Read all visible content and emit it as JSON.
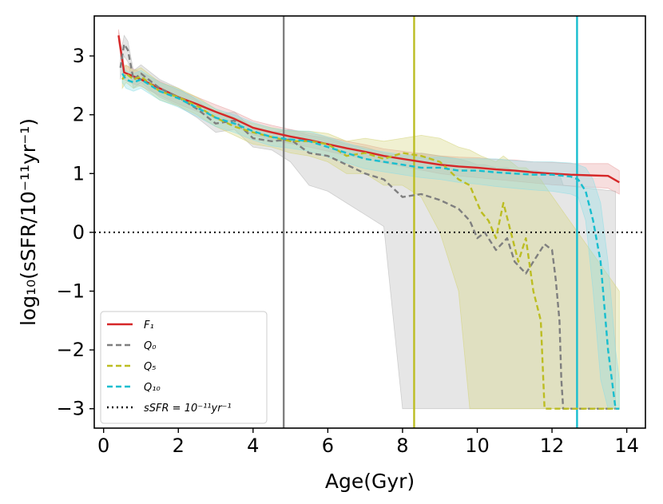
{
  "chart_data": {
    "type": "line",
    "xlabel": "Age(Gyr)",
    "ylabel": "log₁₀(sSFR/10⁻¹¹yr⁻¹)",
    "xlim": [
      -0.25,
      14.5
    ],
    "ylim": [
      -3.33,
      3.68
    ],
    "xticks": [
      0,
      2,
      4,
      6,
      8,
      10,
      12,
      14
    ],
    "yticks": [
      3,
      2,
      1,
      0,
      -1,
      -2,
      -3
    ],
    "grid": false,
    "legend_position": "lower-left",
    "reference_line": {
      "y": 0,
      "color": "#000000",
      "style": "dotted",
      "label": "sSFR = 10⁻¹¹yr⁻¹"
    },
    "vertical_lines": [
      {
        "x": 4.82,
        "color": "#808080"
      },
      {
        "x": 8.31,
        "color": "#bcbd22"
      },
      {
        "x": 12.67,
        "color": "#17becf"
      }
    ],
    "series": [
      {
        "name": "F₁",
        "color": "#d62728",
        "style": "solid",
        "band_color": "#e8a0a0",
        "x": [
          0.4,
          0.55,
          0.7,
          1,
          1.5,
          2,
          2.5,
          3,
          3.5,
          4,
          4.5,
          5,
          5.5,
          6,
          6.5,
          7,
          7.5,
          8,
          8.5,
          9,
          9.5,
          10,
          10.5,
          11,
          11.5,
          12,
          12.5,
          13,
          13.5,
          13.8
        ],
        "y": [
          3.35,
          2.72,
          2.68,
          2.6,
          2.45,
          2.3,
          2.18,
          2.05,
          1.93,
          1.78,
          1.7,
          1.63,
          1.57,
          1.5,
          1.43,
          1.37,
          1.3,
          1.25,
          1.2,
          1.15,
          1.12,
          1.1,
          1.07,
          1.05,
          1.02,
          1,
          0.98,
          0.97,
          0.96,
          0.85
        ],
        "lower": [
          3.25,
          2.6,
          2.55,
          2.48,
          2.33,
          2.18,
          2.06,
          1.93,
          1.81,
          1.66,
          1.58,
          1.51,
          1.45,
          1.38,
          1.31,
          1.25,
          1.18,
          1.12,
          1.06,
          1,
          0.96,
          0.93,
          0.9,
          0.87,
          0.84,
          0.81,
          0.79,
          0.77,
          0.75,
          0.65
        ],
        "upper": [
          3.45,
          2.84,
          2.81,
          2.72,
          2.57,
          2.42,
          2.3,
          2.17,
          2.05,
          1.9,
          1.82,
          1.75,
          1.69,
          1.62,
          1.55,
          1.49,
          1.42,
          1.38,
          1.34,
          1.3,
          1.28,
          1.27,
          1.24,
          1.23,
          1.2,
          1.19,
          1.17,
          1.17,
          1.17,
          1.05
        ]
      },
      {
        "name": "Q₀",
        "color": "#7f7f7f",
        "style": "dashed",
        "band_color": "#b8b8b8",
        "x": [
          0.45,
          0.55,
          0.65,
          0.8,
          1,
          1.5,
          2,
          2.5,
          3,
          3.5,
          4,
          4.5,
          5,
          5.5,
          6,
          6.5,
          7,
          7.5,
          8,
          8.5,
          9,
          9.5,
          9.8,
          10,
          10.2,
          10.5,
          10.8,
          11,
          11.3,
          11.6,
          11.8,
          12,
          12.1,
          12.2,
          12.25,
          12.3,
          13.7
        ],
        "y": [
          2.8,
          3.2,
          3.1,
          2.6,
          2.7,
          2.45,
          2.3,
          2.1,
          1.85,
          1.9,
          1.6,
          1.55,
          1.58,
          1.35,
          1.3,
          1.15,
          1,
          0.9,
          0.6,
          0.65,
          0.55,
          0.4,
          0.2,
          -0.1,
          0,
          -0.3,
          -0.1,
          -0.5,
          -0.7,
          -0.4,
          -0.2,
          -0.3,
          -0.8,
          -1.5,
          -2.5,
          -3,
          -3
        ],
        "lower": [
          2.6,
          3,
          2.9,
          2.45,
          2.55,
          2.3,
          2.15,
          1.95,
          1.7,
          1.75,
          1.45,
          1.4,
          1.2,
          0.8,
          0.7,
          0.5,
          0.3,
          0.1,
          -3,
          -3,
          -3,
          -3,
          -3,
          -3,
          -3,
          -3,
          -3,
          -3,
          -3,
          -3,
          -3,
          -3,
          -3,
          -3,
          -3,
          -3,
          -3
        ],
        "upper": [
          3,
          3.35,
          3.25,
          2.75,
          2.85,
          2.6,
          2.45,
          2.25,
          2,
          2.05,
          1.75,
          1.7,
          1.75,
          1.65,
          1.6,
          1.5,
          1.45,
          1.35,
          1.3,
          1.35,
          1.3,
          1.25,
          1.2,
          1.15,
          1.15,
          1.1,
          1.1,
          1.05,
          1.05,
          1.05,
          1,
          1,
          1,
          1,
          0.9,
          0.8,
          0.7
        ]
      },
      {
        "name": "Q₅",
        "color": "#bcbd22",
        "style": "dashed",
        "band_color": "#d4d47a",
        "x": [
          0.5,
          0.6,
          0.8,
          1,
          1.5,
          2,
          2.5,
          3,
          3.5,
          4,
          4.5,
          5,
          5.5,
          6,
          6.5,
          7,
          7.5,
          8,
          8.5,
          9,
          9.5,
          9.8,
          10.1,
          10.3,
          10.5,
          10.7,
          10.9,
          11.1,
          11.3,
          11.5,
          11.7,
          11.8,
          13.8
        ],
        "y": [
          2.6,
          2.7,
          2.6,
          2.65,
          2.4,
          2.3,
          2.15,
          1.95,
          1.8,
          1.7,
          1.62,
          1.55,
          1.55,
          1.5,
          1.3,
          1.35,
          1.25,
          1.35,
          1.3,
          1.2,
          0.9,
          0.8,
          0.35,
          0.2,
          -0.1,
          0.5,
          0,
          -0.5,
          -0.1,
          -1,
          -1.5,
          -3,
          -3
        ],
        "lower": [
          2.45,
          2.55,
          2.45,
          2.5,
          2.25,
          2.15,
          2,
          1.8,
          1.65,
          1.5,
          1.45,
          1.35,
          1.3,
          1.2,
          1,
          1,
          0.8,
          0.8,
          0.6,
          0,
          -1,
          -3,
          -3,
          -3,
          -3,
          -3,
          -3,
          -3,
          -3,
          -3,
          -3,
          -3,
          -3
        ],
        "upper": [
          2.75,
          2.85,
          2.75,
          2.8,
          2.55,
          2.45,
          2.3,
          2.1,
          1.95,
          1.85,
          1.78,
          1.72,
          1.72,
          1.68,
          1.55,
          1.6,
          1.55,
          1.6,
          1.65,
          1.6,
          1.45,
          1.4,
          1.3,
          1.25,
          1.2,
          1.3,
          1.2,
          1.1,
          1.1,
          1,
          0.9,
          0.8,
          -1
        ]
      },
      {
        "name": "Q₁₀",
        "color": "#17becf",
        "style": "dashed",
        "band_color": "#8edde6",
        "x": [
          0.5,
          0.6,
          0.8,
          1,
          1.5,
          2,
          2.5,
          3,
          3.5,
          4,
          4.5,
          5,
          5.5,
          6,
          6.5,
          7,
          7.5,
          8,
          8.5,
          9,
          9.5,
          10,
          10.5,
          11,
          11.5,
          12,
          12.5,
          12.7,
          12.9,
          13.1,
          13.3,
          13.5,
          13.7,
          13.8
        ],
        "y": [
          2.7,
          2.6,
          2.55,
          2.6,
          2.4,
          2.28,
          2.12,
          1.95,
          1.85,
          1.72,
          1.62,
          1.58,
          1.55,
          1.45,
          1.35,
          1.25,
          1.2,
          1.15,
          1.1,
          1.1,
          1.05,
          1.05,
          1.02,
          1,
          0.98,
          0.98,
          0.95,
          0.9,
          0.7,
          0.2,
          -0.5,
          -2,
          -3,
          -3
        ],
        "lower": [
          2.55,
          2.45,
          2.4,
          2.45,
          2.25,
          2.13,
          1.97,
          1.8,
          1.7,
          1.57,
          1.47,
          1.43,
          1.38,
          1.28,
          1.18,
          1.08,
          1.03,
          0.98,
          0.93,
          0.9,
          0.85,
          0.82,
          0.78,
          0.75,
          0.72,
          0.7,
          0.65,
          0.6,
          0.2,
          -1,
          -2.5,
          -3,
          -3,
          -3
        ],
        "upper": [
          2.85,
          2.75,
          2.7,
          2.75,
          2.55,
          2.43,
          2.27,
          2.1,
          2,
          1.87,
          1.77,
          1.73,
          1.72,
          1.62,
          1.52,
          1.42,
          1.37,
          1.32,
          1.27,
          1.28,
          1.25,
          1.25,
          1.25,
          1.22,
          1.2,
          1.2,
          1.18,
          1.15,
          1.1,
          0.9,
          0.5,
          -0.5,
          -2,
          -2.5
        ]
      }
    ]
  }
}
